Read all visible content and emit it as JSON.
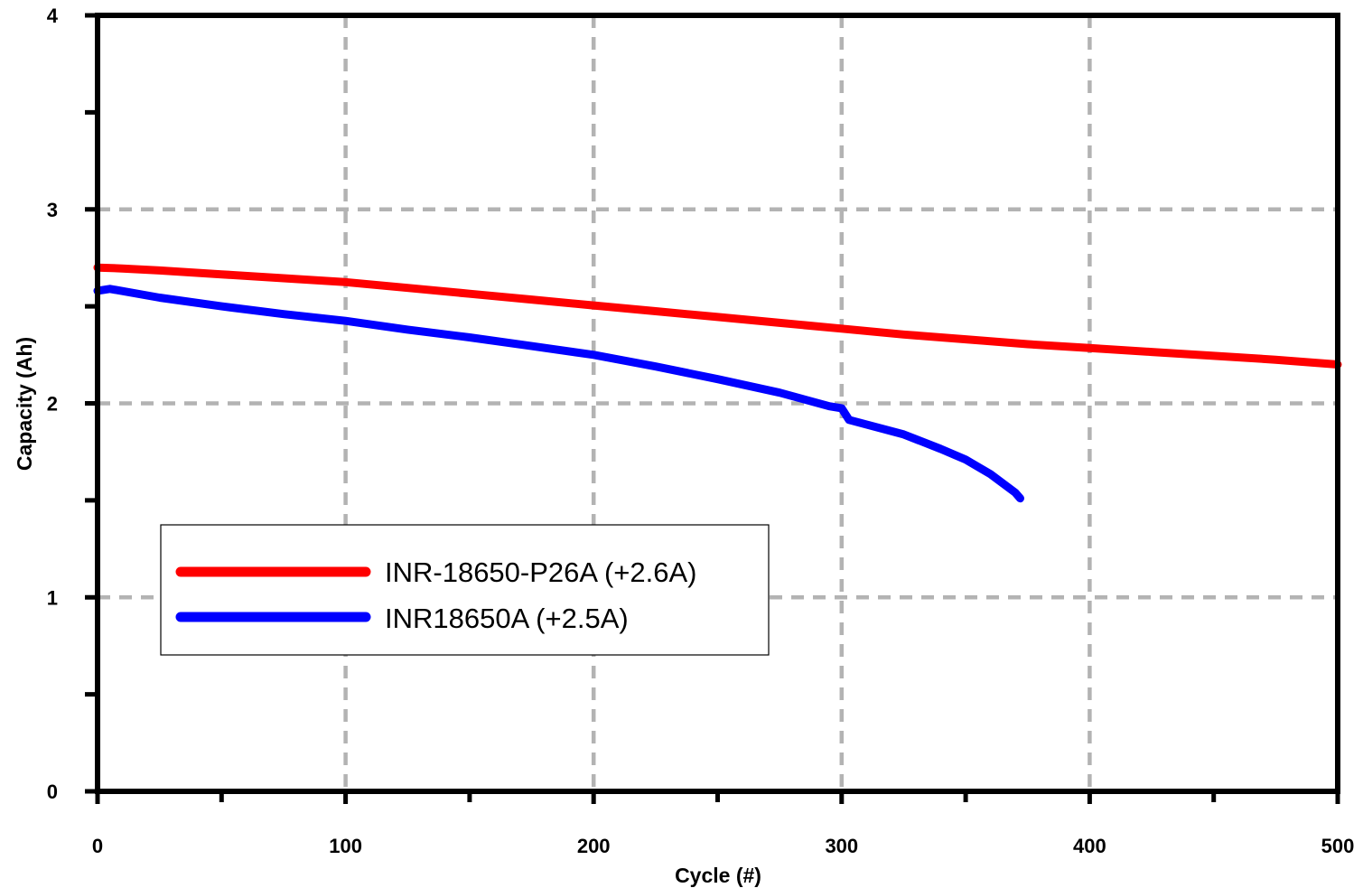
{
  "chart_data": {
    "type": "line",
    "title": "",
    "xlabel": "Cycle (#)",
    "ylabel": "Capacity (Ah)",
    "xlim": [
      0,
      500
    ],
    "ylim": [
      0,
      4
    ],
    "x_ticks": [
      0,
      100,
      200,
      300,
      400,
      500
    ],
    "y_ticks": [
      0,
      1,
      2,
      3,
      4
    ],
    "x_tick_labels": [
      "0",
      "100",
      "200",
      "300",
      "400",
      "500"
    ],
    "y_tick_labels": [
      "0",
      "1",
      "2",
      "3",
      "4"
    ],
    "grid": true,
    "legend_position": "lower-left",
    "series": [
      {
        "name": "INR-18650-P26A (+2.6A)",
        "color": "#ff0000",
        "x": [
          0,
          10,
          25,
          50,
          75,
          100,
          125,
          150,
          175,
          200,
          225,
          250,
          275,
          300,
          325,
          350,
          375,
          400,
          425,
          450,
          475,
          500
        ],
        "y": [
          2.7,
          2.695,
          2.685,
          2.665,
          2.645,
          2.625,
          2.595,
          2.565,
          2.535,
          2.505,
          2.475,
          2.445,
          2.415,
          2.385,
          2.355,
          2.33,
          2.305,
          2.285,
          2.265,
          2.245,
          2.225,
          2.2
        ]
      },
      {
        "name": "INR18650A (+2.5A)",
        "color": "#0000ff",
        "x": [
          0,
          5,
          25,
          50,
          75,
          100,
          125,
          150,
          175,
          200,
          225,
          250,
          275,
          295,
          300,
          303,
          325,
          340,
          350,
          360,
          370,
          372
        ],
        "y": [
          2.58,
          2.59,
          2.545,
          2.5,
          2.46,
          2.425,
          2.38,
          2.34,
          2.295,
          2.25,
          2.19,
          2.125,
          2.055,
          1.985,
          1.975,
          1.915,
          1.84,
          1.765,
          1.71,
          1.635,
          1.54,
          1.51
        ]
      }
    ]
  }
}
